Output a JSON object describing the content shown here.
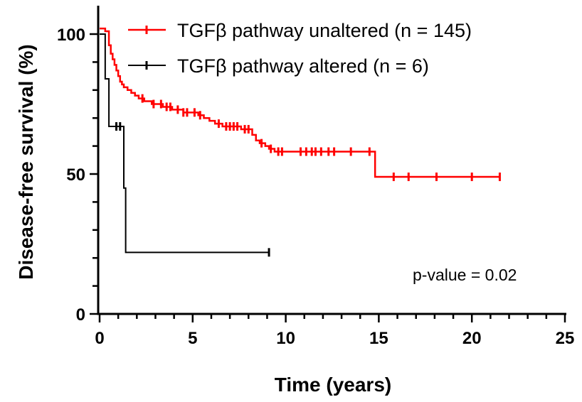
{
  "chart_data": {
    "type": "line",
    "subtype": "kaplan-meier step plot",
    "title": "",
    "xlabel": "Time (years)",
    "ylabel": "Disease-free survival (%)",
    "xlim": [
      0,
      25
    ],
    "ylim": [
      0,
      100
    ],
    "x_ticks": [
      "0",
      "5",
      "10",
      "15",
      "20",
      "25"
    ],
    "y_ticks": [
      "0",
      "50",
      "100"
    ],
    "grid": false,
    "legend_position": "top-right",
    "annotation": "p-value = 0.02",
    "series": [
      {
        "name": "TGFβ pathway unaltered (n = 145)",
        "color": "#ff0000",
        "steps": [
          [
            0,
            102
          ],
          [
            0.3,
            101
          ],
          [
            0.5,
            96
          ],
          [
            0.6,
            93
          ],
          [
            0.7,
            91
          ],
          [
            0.8,
            89
          ],
          [
            0.9,
            87
          ],
          [
            1.0,
            85
          ],
          [
            1.1,
            83
          ],
          [
            1.2,
            82
          ],
          [
            1.3,
            81
          ],
          [
            1.5,
            80
          ],
          [
            1.7,
            79
          ],
          [
            1.9,
            78
          ],
          [
            2.1,
            77
          ],
          [
            2.4,
            76
          ],
          [
            2.8,
            75
          ],
          [
            3.4,
            74
          ],
          [
            3.9,
            73
          ],
          [
            4.5,
            72
          ],
          [
            5.3,
            71
          ],
          [
            5.6,
            70
          ],
          [
            5.9,
            69
          ],
          [
            6.2,
            68
          ],
          [
            6.6,
            67
          ],
          [
            7.6,
            66
          ],
          [
            8.2,
            64
          ],
          [
            8.4,
            62
          ],
          [
            8.6,
            61
          ],
          [
            8.9,
            60
          ],
          [
            9.1,
            59
          ],
          [
            9.4,
            58
          ],
          [
            14.8,
            49
          ]
        ],
        "end_x": 21.5,
        "censor_x": [
          2.3,
          2.9,
          3.3,
          3.6,
          3.8,
          4.2,
          4.5,
          4.7,
          5.1,
          5.4,
          6.4,
          6.8,
          7.0,
          7.2,
          7.4,
          7.8,
          8.0,
          8.7,
          9.2,
          9.6,
          9.8,
          10.8,
          11.1,
          11.4,
          11.6,
          11.9,
          12.3,
          12.6,
          13.5,
          14.5,
          15.8,
          16.6,
          18.1,
          20.0,
          21.5
        ]
      },
      {
        "name": "TGFβ pathway altered (n = 6)",
        "color": "#000000",
        "steps": [
          [
            0,
            100
          ],
          [
            0.3,
            84
          ],
          [
            0.5,
            67
          ],
          [
            1.3,
            45
          ],
          [
            1.4,
            22
          ]
        ],
        "end_x": 9.1,
        "censor_x": [
          0.9,
          1.1,
          9.1
        ]
      }
    ]
  }
}
